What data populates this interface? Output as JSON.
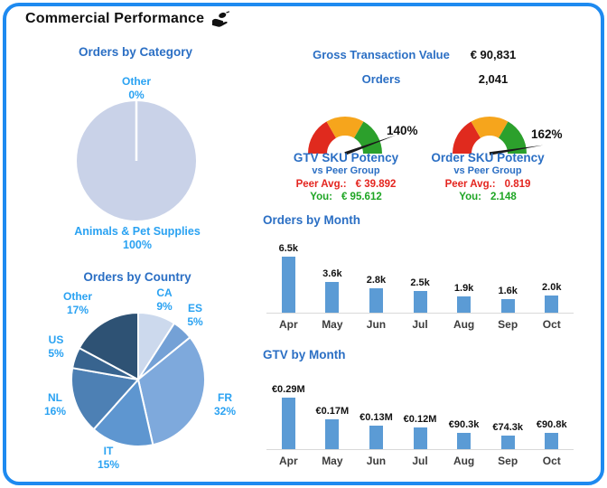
{
  "header": {
    "title": "Commercial Performance",
    "icon": "hand-offering-icon"
  },
  "kpis": [
    {
      "label": "Gross Transaction Value",
      "value": "€ 90,831"
    },
    {
      "label": "Orders",
      "value": "2,041"
    }
  ],
  "gauges": [
    {
      "title": "GTV SKU Potency",
      "subtitle": "vs Peer Group",
      "value_label": "140%",
      "peer_label": "Peer Avg.:",
      "peer_value": "€ 39.892",
      "you_label": "You:",
      "you_value": "€ 95.612"
    },
    {
      "title": "Order SKU Potency",
      "subtitle": "vs Peer Group",
      "value_label": "162%",
      "peer_label": "Peer Avg.:",
      "peer_value": "0.819",
      "you_label": "You:",
      "you_value": "2.148"
    }
  ],
  "chart_data": [
    {
      "type": "pie",
      "title": "Orders by Category",
      "labels": [
        "Other",
        "Animals & Pet Supplies"
      ],
      "values": [
        0,
        100
      ],
      "pct_labels": [
        "0%",
        "100%"
      ],
      "colors": [
        "#c9d2e8",
        "#c9d2e8"
      ],
      "legend_position": "around"
    },
    {
      "type": "pie",
      "title": "Orders by Country",
      "labels": [
        "CA",
        "ES",
        "FR",
        "IT",
        "NL",
        "US",
        "Other"
      ],
      "values": [
        9,
        5,
        32,
        15,
        16,
        5,
        17
      ],
      "pct_labels": [
        "9%",
        "5%",
        "32%",
        "15%",
        "16%",
        "5%",
        "17%"
      ],
      "colors": [
        "#ccd9ed",
        "#74a1d6",
        "#7ea9dc",
        "#5e96d0",
        "#4d80b4",
        "#38648f",
        "#2e5274"
      ],
      "legend_position": "around"
    },
    {
      "type": "bar",
      "title": "Orders by Month",
      "categories": [
        "Apr",
        "May",
        "Jun",
        "Jul",
        "Aug",
        "Sep",
        "Oct"
      ],
      "values": [
        6500,
        3600,
        2800,
        2500,
        1900,
        1600,
        2000
      ],
      "value_labels": [
        "6.5k",
        "3.6k",
        "2.8k",
        "2.5k",
        "1.9k",
        "1.6k",
        "2.0k"
      ],
      "xlabel": "",
      "ylabel": "",
      "grid": false
    },
    {
      "type": "bar",
      "title": "GTV by Month",
      "categories": [
        "Apr",
        "May",
        "Jun",
        "Jul",
        "Aug",
        "Sep",
        "Oct"
      ],
      "values": [
        290000,
        170000,
        130000,
        120000,
        90300,
        74300,
        90800
      ],
      "value_labels": [
        "€0.29M",
        "€0.17M",
        "€0.13M",
        "€0.12M",
        "€90.3k",
        "€74.3k",
        "€90.8k"
      ],
      "xlabel": "",
      "ylabel": "",
      "grid": false
    }
  ],
  "colors": {
    "border_blue": "#1e8af0",
    "title_blue": "#2b6fc4",
    "label_blue": "#2aa2f2",
    "bar_blue": "#5b9bd5",
    "gauge_red": "#e02a1e",
    "gauge_amber": "#f6a51c",
    "gauge_green": "#2ca02c",
    "text_red": "#e4251f",
    "text_green": "#1ea524",
    "pie_light": "#c9d2e8",
    "needle_black": "#1a1a1a",
    "axis_gray": "#d9d9d9",
    "month_gray": "#3c3c3c"
  }
}
